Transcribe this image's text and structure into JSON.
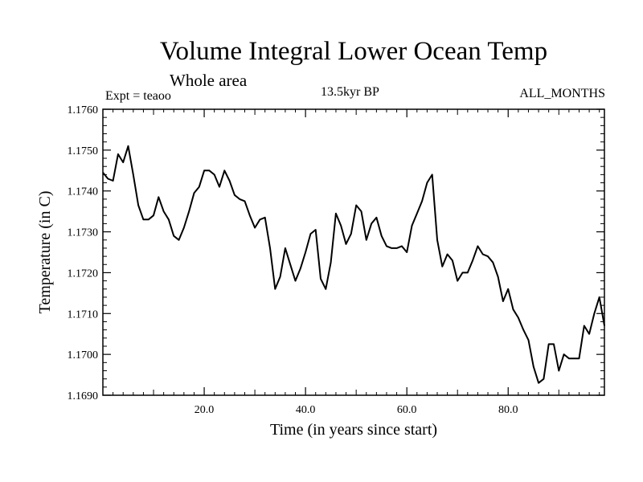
{
  "chart_data": {
    "type": "line",
    "title": "Volume Integral Lower Ocean Temp",
    "subtitle": "Whole area",
    "left_label": "Expt = teaoo",
    "center_label": "13.5kyr BP",
    "right_label": "ALL_MONTHS",
    "xlabel": "Time (in years since start)",
    "ylabel": "Temperature (in C)",
    "xlim": [
      0,
      99
    ],
    "ylim": [
      1.169,
      1.176
    ],
    "xticks": [
      20,
      40,
      60,
      80
    ],
    "xtick_labels": [
      "20.0",
      "40.0",
      "60.0",
      "80.0"
    ],
    "yticks": [
      1.169,
      1.17,
      1.171,
      1.172,
      1.173,
      1.174,
      1.175,
      1.176
    ],
    "ytick_labels": [
      "1.1690",
      "1.1700",
      "1.1710",
      "1.1720",
      "1.1730",
      "1.1740",
      "1.1750",
      "1.1760"
    ],
    "series": [
      {
        "name": "Volume Integral Lower Ocean Temp",
        "x": [
          0,
          1,
          2,
          3,
          4,
          5,
          6,
          7,
          8,
          9,
          10,
          11,
          12,
          13,
          14,
          15,
          16,
          17,
          18,
          19,
          20,
          21,
          22,
          23,
          24,
          25,
          26,
          27,
          28,
          29,
          30,
          31,
          32,
          33,
          34,
          35,
          36,
          37,
          38,
          39,
          40,
          41,
          42,
          43,
          44,
          45,
          46,
          47,
          48,
          49,
          50,
          51,
          52,
          53,
          54,
          55,
          56,
          57,
          58,
          59,
          60,
          61,
          62,
          63,
          64,
          65,
          66,
          67,
          68,
          69,
          70,
          71,
          72,
          73,
          74,
          75,
          76,
          77,
          78,
          79,
          80,
          81,
          82,
          83,
          84,
          85,
          86,
          87,
          88,
          89,
          90,
          91,
          92,
          93,
          94,
          95,
          96,
          97,
          98,
          99
        ],
        "values": [
          1.17445,
          1.1743,
          1.17425,
          1.1749,
          1.1747,
          1.1751,
          1.1744,
          1.17365,
          1.1733,
          1.1733,
          1.1734,
          1.17385,
          1.1735,
          1.1733,
          1.1729,
          1.1728,
          1.1731,
          1.1735,
          1.17395,
          1.1741,
          1.1745,
          1.1745,
          1.1744,
          1.1741,
          1.1745,
          1.17425,
          1.1739,
          1.1738,
          1.17375,
          1.1734,
          1.1731,
          1.1733,
          1.17335,
          1.1726,
          1.1716,
          1.1719,
          1.1726,
          1.1722,
          1.1718,
          1.1721,
          1.1725,
          1.17295,
          1.17305,
          1.17185,
          1.1716,
          1.17225,
          1.17345,
          1.17315,
          1.1727,
          1.17295,
          1.17365,
          1.1735,
          1.1728,
          1.1732,
          1.17335,
          1.1729,
          1.17265,
          1.1726,
          1.1726,
          1.17265,
          1.1725,
          1.17315,
          1.17345,
          1.17375,
          1.1742,
          1.1744,
          1.1728,
          1.17215,
          1.17245,
          1.1723,
          1.1718,
          1.172,
          1.172,
          1.1723,
          1.17265,
          1.17245,
          1.1724,
          1.17225,
          1.1719,
          1.1713,
          1.1716,
          1.1711,
          1.1709,
          1.1706,
          1.17035,
          1.1697,
          1.1693,
          1.1694,
          1.17025,
          1.17025,
          1.1696,
          1.17,
          1.1699,
          1.1699,
          1.1699,
          1.1707,
          1.1705,
          1.171,
          1.1714,
          1.1707
        ]
      }
    ]
  }
}
